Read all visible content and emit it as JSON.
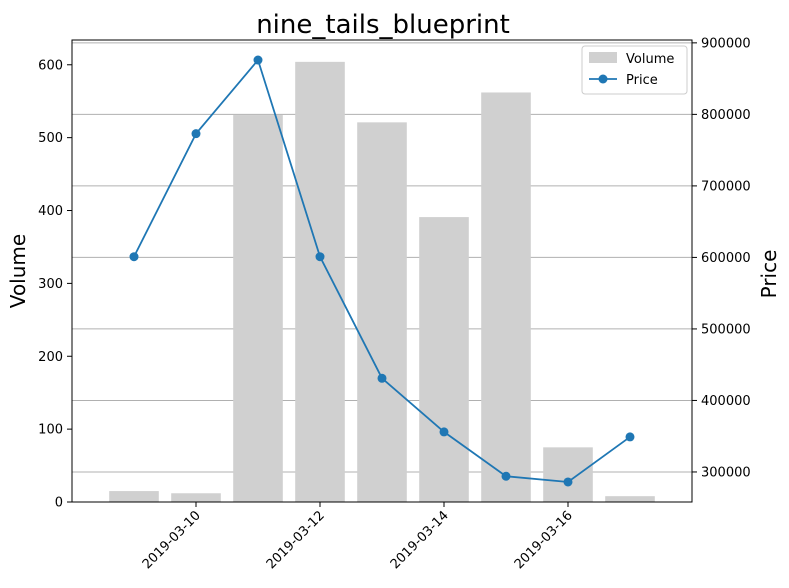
{
  "chart_data": {
    "type": "bar",
    "title": "nine_tails_blueprint",
    "x": [
      "2019-03-09",
      "2019-03-10",
      "2019-03-11",
      "2019-03-12",
      "2019-03-13",
      "2019-03-14",
      "2019-03-15",
      "2019-03-16",
      "2019-03-17"
    ],
    "x_ticks": [
      "2019-03-10",
      "2019-03-12",
      "2019-03-14",
      "2019-03-16"
    ],
    "xlim": [
      "2019-03-08",
      "2019-03-18"
    ],
    "series": [
      {
        "name": "Volume",
        "type": "bar",
        "axis": "left",
        "color": "#d0d0d0",
        "values": [
          15,
          12,
          531,
          604,
          521,
          391,
          562,
          75,
          8
        ]
      },
      {
        "name": "Price",
        "type": "line",
        "axis": "right",
        "color": "#1f77b4",
        "marker": "circle",
        "values": [
          601000,
          773000,
          876000,
          601000,
          431000,
          356000,
          294000,
          286000,
          349000
        ]
      }
    ],
    "left_axis": {
      "label": "Volume",
      "ylim": [
        0,
        634
      ],
      "ticks": [
        0,
        100,
        200,
        300,
        400,
        500,
        600
      ]
    },
    "right_axis": {
      "label": "Price",
      "ylim": [
        258000,
        904000
      ],
      "ticks": [
        300000,
        400000,
        500000,
        600000,
        700000,
        800000,
        900000
      ]
    },
    "grid": "horizontal, right axis ticks",
    "legend_position": "top-right"
  }
}
